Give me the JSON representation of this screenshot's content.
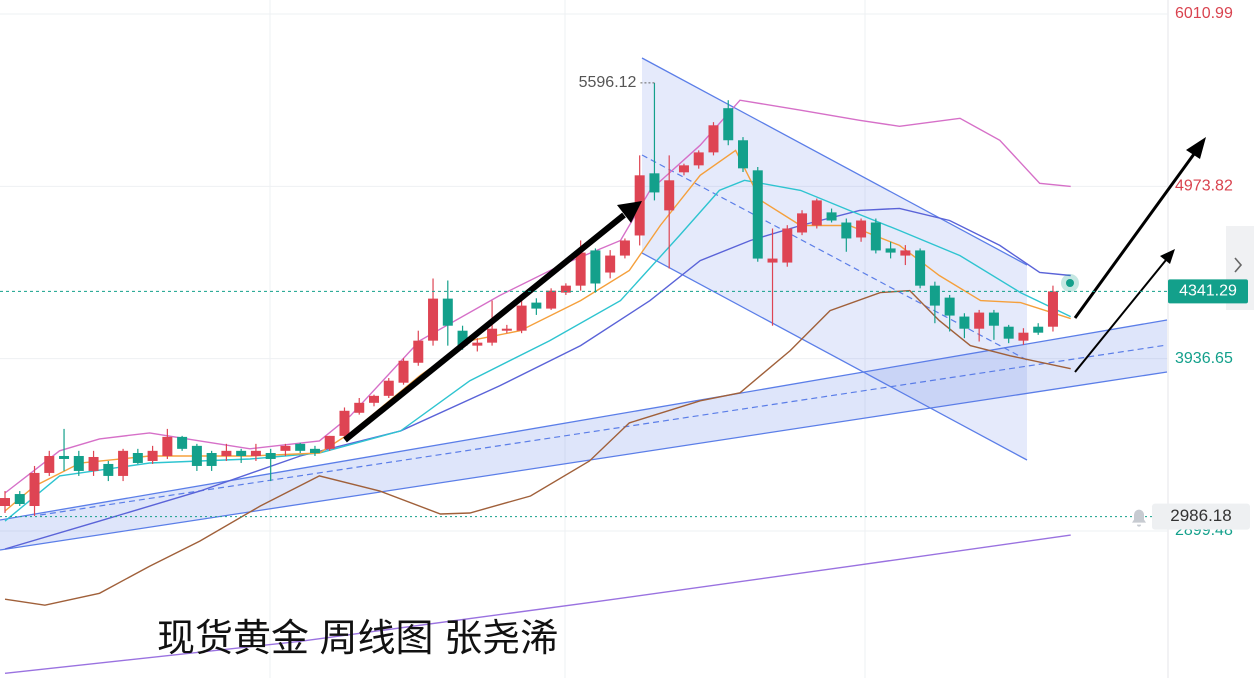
{
  "chart_data": {
    "type": "candlestick",
    "title": "现货黄金 周线图 张尧浠",
    "up_color": "#de4453",
    "down_color": "#13a08b",
    "ylim": [
      2015,
      6095
    ],
    "yticks": [
      6010.99,
      4973.82,
      3936.65,
      2899.48
    ],
    "ytick_colors": [
      "#d9434f",
      "#d9434f",
      "#13a08b",
      "#13a08b"
    ],
    "alert_level": 2986.18,
    "grid": true,
    "candles": [
      [
        3050,
        3140,
        3008,
        3098
      ],
      [
        3122,
        3140,
        3050,
        3062
      ],
      [
        3050,
        3291,
        2990,
        3249
      ],
      [
        3249,
        3382,
        3231,
        3351
      ],
      [
        3351,
        3514,
        3261,
        3333
      ],
      [
        3351,
        3382,
        3231,
        3261
      ],
      [
        3261,
        3382,
        3231,
        3345
      ],
      [
        3303,
        3321,
        3200,
        3231
      ],
      [
        3231,
        3394,
        3200,
        3382
      ],
      [
        3369,
        3394,
        3303,
        3309
      ],
      [
        3321,
        3412,
        3303,
        3382
      ],
      [
        3351,
        3514,
        3333,
        3466
      ],
      [
        3466,
        3472,
        3382,
        3394
      ],
      [
        3412,
        3424,
        3261,
        3291
      ],
      [
        3369,
        3382,
        3261,
        3291
      ],
      [
        3351,
        3424,
        3321,
        3382
      ],
      [
        3382,
        3394,
        3309,
        3351
      ],
      [
        3351,
        3424,
        3321,
        3382
      ],
      [
        3369,
        3394,
        3200,
        3333
      ],
      [
        3382,
        3424,
        3351,
        3412
      ],
      [
        3424,
        3430,
        3369,
        3382
      ],
      [
        3394,
        3412,
        3351,
        3369
      ],
      [
        3394,
        3472,
        3382,
        3472
      ],
      [
        3472,
        3643,
        3466,
        3623
      ],
      [
        3611,
        3700,
        3600,
        3671
      ],
      [
        3671,
        3720,
        3650,
        3713
      ],
      [
        3713,
        3820,
        3700,
        3804
      ],
      [
        3792,
        3940,
        3780,
        3924
      ],
      [
        3912,
        4105,
        3894,
        4045
      ],
      [
        4045,
        4419,
        4015,
        4298
      ],
      [
        4298,
        4407,
        4015,
        4135
      ],
      [
        4105,
        4135,
        3990,
        4015
      ],
      [
        4015,
        4060,
        3980,
        4033
      ],
      [
        4033,
        4286,
        4015,
        4117
      ],
      [
        4105,
        4140,
        4090,
        4117
      ],
      [
        4105,
        4290,
        4090,
        4256
      ],
      [
        4274,
        4300,
        4200,
        4238
      ],
      [
        4238,
        4360,
        4230,
        4346
      ],
      [
        4334,
        4390,
        4320,
        4376
      ],
      [
        4376,
        4648,
        4346,
        4575
      ],
      [
        4588,
        4600,
        4334,
        4389
      ],
      [
        4455,
        4590,
        4420,
        4557
      ],
      [
        4557,
        4660,
        4540,
        4648
      ],
      [
        4678,
        5160,
        4618,
        5040
      ],
      [
        5052,
        5596.12,
        4889,
        4937
      ],
      [
        4829,
        5160,
        4479,
        5010
      ],
      [
        5058,
        5110,
        5040,
        5100
      ],
      [
        5100,
        5190,
        5080,
        5178
      ],
      [
        5178,
        5360,
        5160,
        5341
      ],
      [
        5444,
        5492,
        5221,
        5251
      ],
      [
        5251,
        5270,
        5060,
        5082
      ],
      [
        5070,
        5090,
        4520,
        4539
      ],
      [
        4515,
        4720,
        4135,
        4539
      ],
      [
        4515,
        4740,
        4490,
        4720
      ],
      [
        4696,
        4830,
        4680,
        4811
      ],
      [
        4738,
        4900,
        4720,
        4889
      ],
      [
        4817,
        4840,
        4756,
        4768
      ],
      [
        4756,
        4780,
        4580,
        4660
      ],
      [
        4666,
        4780,
        4640,
        4768
      ],
      [
        4756,
        4780,
        4570,
        4588
      ],
      [
        4600,
        4640,
        4540,
        4575
      ],
      [
        4557,
        4620,
        4500,
        4588
      ],
      [
        4588,
        4600,
        4360,
        4376
      ],
      [
        4376,
        4400,
        4150,
        4256
      ],
      [
        4304,
        4320,
        4100,
        4196
      ],
      [
        4190,
        4210,
        4060,
        4117
      ],
      [
        4117,
        4230,
        4040,
        4214
      ],
      [
        4214,
        4230,
        4050,
        4135
      ],
      [
        4129,
        4140,
        4030,
        4057
      ],
      [
        4045,
        4120,
        4020,
        4093
      ],
      [
        4129,
        4150,
        4080,
        4093
      ],
      [
        4129,
        4376,
        4100,
        4341.29
      ]
    ],
    "lines": [
      {
        "color": "#9a72e0",
        "x": [
          0,
          20,
          40.3,
          57.3,
          72.2
        ],
        "values": [
          2043,
          2236,
          2477,
          2688,
          2875
        ]
      },
      {
        "color": "#a0603a",
        "x": [
          0,
          2.7,
          6.4,
          9.8,
          13.2,
          17.3,
          21.3,
          25.4,
          29.5,
          31.5,
          35.6,
          39.6,
          42.3,
          47.1,
          49.8,
          53.2,
          55.9,
          59.3,
          61.3,
          63.3,
          65.4,
          68.1,
          72.2
        ],
        "values": [
          2489,
          2453,
          2525,
          2688,
          2839,
          3050,
          3231,
          3140,
          3002,
          3008,
          3110,
          3321,
          3550,
          3683,
          3731,
          3985,
          4226,
          4334,
          4346,
          4166,
          4015,
          3954,
          3876
        ]
      },
      {
        "color": "#5a63d8",
        "x": [
          0,
          6.4,
          13.2,
          20,
          26.8,
          33.5,
          39,
          43.7,
          47.1,
          50.5,
          53.9,
          57.9,
          60.6,
          64,
          67.4,
          70.1,
          72.2
        ],
        "values": [
          2791,
          2959,
          3140,
          3351,
          3502,
          3773,
          4015,
          4286,
          4527,
          4648,
          4738,
          4829,
          4841,
          4768,
          4618,
          4455,
          4437
        ]
      },
      {
        "color": "#d670c8",
        "x": [
          0,
          3.7,
          6.4,
          9.8,
          13.2,
          16.6,
          21.3,
          23.4,
          28.1,
          33.5,
          37.6,
          41.7,
          43.7,
          47.1,
          49.8,
          53.9,
          57.9,
          60.6,
          64.7,
          67.4,
          70.1,
          72.2
        ],
        "values": [
          3128,
          3382,
          3454,
          3490,
          3442,
          3394,
          3442,
          3593,
          4045,
          4316,
          4497,
          4648,
          4949,
          5221,
          5492,
          5432,
          5371,
          5335,
          5383,
          5251,
          4992,
          4973
        ]
      },
      {
        "color": "#2ec4d0",
        "x": [
          0,
          3.7,
          9.8,
          16.6,
          21.3,
          26.8,
          31.5,
          36.9,
          41.7,
          45.7,
          48.4,
          50.1,
          53.9,
          57.2,
          60.6,
          64.7,
          68.8,
          72.2
        ],
        "values": [
          2959,
          3231,
          3309,
          3333,
          3369,
          3502,
          3804,
          4045,
          4286,
          4678,
          4949,
          5010,
          4949,
          4829,
          4708,
          4557,
          4334,
          4190
        ]
      },
      {
        "color": "#f5a03c",
        "x": [
          0,
          2,
          5.1,
          9.8,
          16.6,
          21.3,
          23.4,
          28.1,
          31.5,
          34.9,
          39,
          42.3,
          44.4,
          47.1,
          49.5,
          51.2,
          53.9,
          57.2,
          60.6,
          63.3,
          66.1,
          68.8,
          72.2
        ],
        "values": [
          3020,
          3170,
          3309,
          3351,
          3351,
          3369,
          3490,
          3834,
          4045,
          4105,
          4286,
          4467,
          4738,
          5040,
          5190,
          4889,
          4738,
          4738,
          4618,
          4437,
          4286,
          4274,
          4178
        ]
      }
    ]
  }
}
